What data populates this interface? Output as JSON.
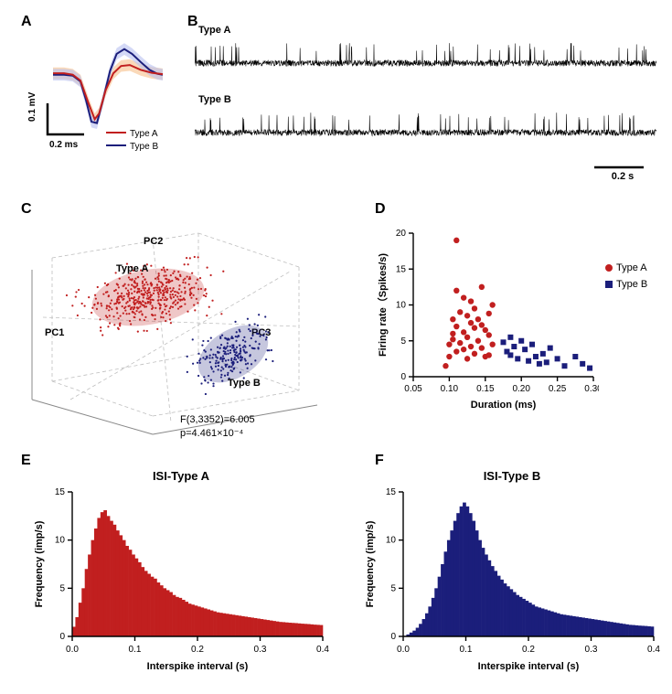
{
  "colors": {
    "typeA": "#c11f1f",
    "typeA_band": "#f6c08a",
    "typeB": "#1b1e7b",
    "typeB_band": "#b8bff0",
    "axis": "#000000",
    "bg": "#ffffff",
    "trace": "#000000",
    "grid3d": "#bfbfbf"
  },
  "panels": {
    "A": {
      "label": "A"
    },
    "B": {
      "label": "B",
      "trace_top": "Type A",
      "trace_bottom": "Type B",
      "scalebar": "0.2 s"
    },
    "C": {
      "label": "C",
      "pc1": "PC1",
      "pc2": "PC2",
      "pc3": "PC3",
      "clusterA": "Type A",
      "clusterB": "Type B",
      "stat1": "F(3,3352)=6.005",
      "stat2": "p=4.461×10⁻⁴"
    },
    "D": {
      "label": "D",
      "xlabel": "Duration (ms)",
      "ylabel": "Firing rate（Spikes/s)",
      "xticks": [
        0.05,
        0.1,
        0.15,
        0.2,
        0.25,
        0.3
      ],
      "yticks": [
        0,
        5,
        10,
        15,
        20
      ],
      "legend": {
        "a": "Type A",
        "b": "Type B"
      },
      "seriesA": [
        [
          0.095,
          1.5
        ],
        [
          0.1,
          2.8
        ],
        [
          0.1,
          4.5
        ],
        [
          0.105,
          6
        ],
        [
          0.105,
          8
        ],
        [
          0.105,
          5.2
        ],
        [
          0.11,
          19
        ],
        [
          0.11,
          12
        ],
        [
          0.11,
          7
        ],
        [
          0.11,
          3.5
        ],
        [
          0.115,
          9
        ],
        [
          0.115,
          4.7
        ],
        [
          0.12,
          11
        ],
        [
          0.12,
          6.2
        ],
        [
          0.12,
          3.8
        ],
        [
          0.125,
          8.5
        ],
        [
          0.125,
          5.5
        ],
        [
          0.125,
          2.5
        ],
        [
          0.13,
          10.5
        ],
        [
          0.13,
          7.5
        ],
        [
          0.13,
          4.2
        ],
        [
          0.135,
          9.5
        ],
        [
          0.135,
          6.8
        ],
        [
          0.135,
          3.2
        ],
        [
          0.14,
          8
        ],
        [
          0.14,
          5
        ],
        [
          0.145,
          12.5
        ],
        [
          0.145,
          7.2
        ],
        [
          0.145,
          4
        ],
        [
          0.15,
          6.5
        ],
        [
          0.15,
          2.8
        ],
        [
          0.155,
          8.8
        ],
        [
          0.155,
          5.8
        ],
        [
          0.155,
          3
        ],
        [
          0.16,
          10
        ],
        [
          0.16,
          4.5
        ]
      ],
      "seriesB": [
        [
          0.175,
          4.8
        ],
        [
          0.18,
          3.5
        ],
        [
          0.185,
          5.5
        ],
        [
          0.185,
          3
        ],
        [
          0.19,
          4.2
        ],
        [
          0.195,
          2.5
        ],
        [
          0.2,
          5
        ],
        [
          0.205,
          3.8
        ],
        [
          0.21,
          2.2
        ],
        [
          0.215,
          4.5
        ],
        [
          0.22,
          2.8
        ],
        [
          0.225,
          1.8
        ],
        [
          0.23,
          3.2
        ],
        [
          0.235,
          2
        ],
        [
          0.24,
          4
        ],
        [
          0.25,
          2.5
        ],
        [
          0.26,
          1.5
        ],
        [
          0.275,
          2.8
        ],
        [
          0.285,
          1.8
        ],
        [
          0.295,
          1.2
        ]
      ]
    },
    "E": {
      "label": "E",
      "title": "ISI-Type A",
      "xlabel": "Interspike interval (s)",
      "ylabel": "Frequency (imp/s)",
      "xticks": [
        0.0,
        0.1,
        0.2,
        0.3,
        0.4
      ],
      "yticks": [
        0,
        5,
        10,
        15
      ],
      "ylim": 15,
      "bars": [
        1,
        2,
        3.5,
        5,
        7,
        8.5,
        10,
        11.2,
        12.3,
        12.9,
        13.1,
        12.5,
        12,
        11.6,
        11,
        10.5,
        10,
        9.4,
        9,
        8.5,
        8.1,
        7.7,
        7.2,
        6.8,
        6.5,
        6.2,
        6,
        5.6,
        5.3,
        5,
        4.8,
        4.6,
        4.3,
        4.1,
        4,
        3.8,
        3.6,
        3.4,
        3.3,
        3.2,
        3.1,
        3,
        2.9,
        2.8,
        2.7,
        2.6,
        2.5,
        2.45,
        2.4,
        2.35,
        2.3,
        2.25,
        2.2,
        2.15,
        2.1,
        2.05,
        2,
        1.95,
        1.9,
        1.85,
        1.8,
        1.75,
        1.7,
        1.65,
        1.6,
        1.55,
        1.5,
        1.48,
        1.45,
        1.42,
        1.4,
        1.38,
        1.35,
        1.32,
        1.3,
        1.28,
        1.25,
        1.22,
        1.2,
        1.18
      ]
    },
    "F": {
      "label": "F",
      "title": "ISI-Type B",
      "xlabel": "Interspike interval (s)",
      "ylabel": "Frequency (imp/s)",
      "xticks": [
        0.0,
        0.1,
        0.2,
        0.3,
        0.4
      ],
      "yticks": [
        0,
        5,
        10,
        15
      ],
      "ylim": 15,
      "bars": [
        0,
        0.2,
        0.4,
        0.6,
        0.9,
        1.3,
        1.8,
        2.4,
        3.1,
        4,
        5,
        6.2,
        7.5,
        8.8,
        10,
        11,
        12,
        12.8,
        13.5,
        13.9,
        13.5,
        12.8,
        12,
        11,
        10,
        9.2,
        8.5,
        7.9,
        7.3,
        6.8,
        6.3,
        5.9,
        5.5,
        5.2,
        4.9,
        4.6,
        4.3,
        4.1,
        3.9,
        3.7,
        3.5,
        3.3,
        3.1,
        3,
        2.9,
        2.8,
        2.7,
        2.6,
        2.5,
        2.4,
        2.3,
        2.25,
        2.2,
        2.15,
        2.1,
        2.05,
        2,
        1.95,
        1.9,
        1.85,
        1.8,
        1.75,
        1.7,
        1.65,
        1.6,
        1.55,
        1.5,
        1.45,
        1.4,
        1.35,
        1.3,
        1.25,
        1.2,
        1.18,
        1.15,
        1.12,
        1.1,
        1.08,
        1.05,
        1.02
      ]
    }
  },
  "panelA": {
    "y_scale_label": "0.1 mV",
    "x_scale_label": "0.2 ms",
    "legend": {
      "a": "Type A",
      "b": "Type B"
    },
    "path_typeA": [
      [
        0,
        0.05
      ],
      [
        0.1,
        0.05
      ],
      [
        0.18,
        0.02
      ],
      [
        0.25,
        -0.1
      ],
      [
        0.32,
        -0.55
      ],
      [
        0.38,
        -0.9
      ],
      [
        0.42,
        -0.78
      ],
      [
        0.48,
        -0.3
      ],
      [
        0.55,
        0.05
      ],
      [
        0.62,
        0.2
      ],
      [
        0.7,
        0.22
      ],
      [
        0.8,
        0.12
      ],
      [
        0.9,
        0.06
      ],
      [
        1,
        0.03
      ]
    ],
    "path_typeB": [
      [
        0,
        0.02
      ],
      [
        0.1,
        0.02
      ],
      [
        0.18,
        0
      ],
      [
        0.25,
        -0.12
      ],
      [
        0.3,
        -0.5
      ],
      [
        0.35,
        -0.95
      ],
      [
        0.4,
        -0.98
      ],
      [
        0.45,
        -0.55
      ],
      [
        0.52,
        0.1
      ],
      [
        0.58,
        0.45
      ],
      [
        0.65,
        0.55
      ],
      [
        0.72,
        0.45
      ],
      [
        0.8,
        0.28
      ],
      [
        0.88,
        0.12
      ],
      [
        0.95,
        0.04
      ],
      [
        1,
        0.02
      ]
    ],
    "band_width": 0.12
  }
}
